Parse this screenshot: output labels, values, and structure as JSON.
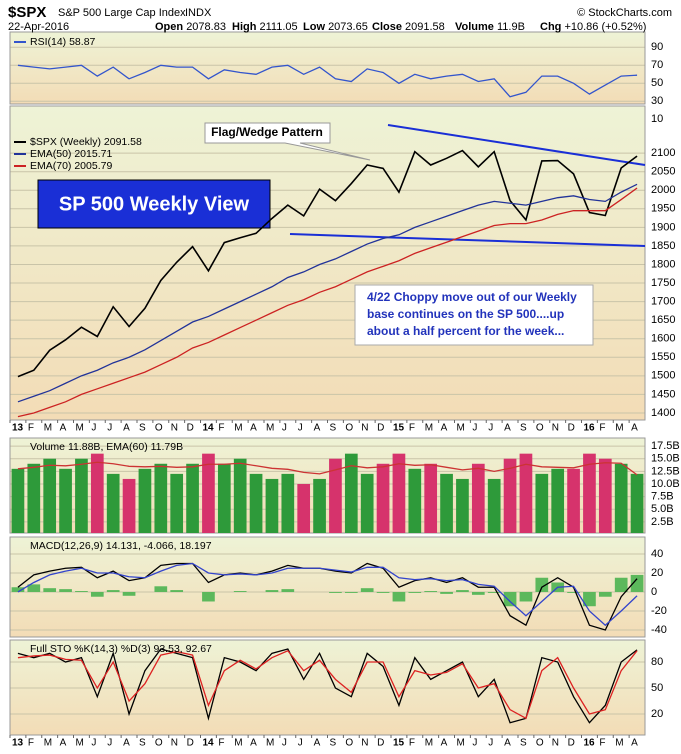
{
  "header": {
    "symbol": "$SPX",
    "name": "S&P 500 Large Cap Index",
    "exchange": "INDX",
    "copyright": "© StockCharts.com",
    "date": "22-Apr-2016",
    "quote": [
      {
        "label": "Open",
        "value": "2078.83"
      },
      {
        "label": "High",
        "value": "2111.05"
      },
      {
        "label": "Low",
        "value": "2073.65"
      },
      {
        "label": "Close",
        "value": "2091.58"
      },
      {
        "label": "Volume",
        "value": "11.9B"
      },
      {
        "label": "Chg",
        "value": "+10.86 (+0.52%)"
      }
    ]
  },
  "annotations": {
    "title_box": "SP 500 Weekly View",
    "callout": "Flag/Wedge Pattern",
    "comment": [
      "4/22  Choppy move out of our Weekly",
      "base continues on the SP 500....up",
      "about a half percent for the week..."
    ]
  },
  "chart_data": [
    {
      "type": "line",
      "ylim": [
        27,
        107
      ],
      "yticks": [
        10,
        30,
        50,
        70,
        90
      ],
      "grid": true,
      "series": [
        {
          "name": "RSI(14) 58.87",
          "color": "#3355cc",
          "values": [
            70,
            68,
            66,
            68,
            70,
            58,
            68,
            55,
            62,
            70,
            68,
            68,
            55,
            65,
            62,
            60,
            68,
            70,
            60,
            68,
            55,
            52,
            66,
            62,
            50,
            60,
            55,
            58,
            60,
            52,
            55,
            35,
            40,
            58,
            58,
            50,
            38,
            48,
            58,
            59
          ]
        }
      ]
    },
    {
      "type": "line",
      "ylim": [
        1381,
        2227
      ],
      "yticks": [
        1400,
        1450,
        1500,
        1550,
        1600,
        1650,
        1700,
        1750,
        1800,
        1850,
        1900,
        1950,
        2000,
        2050,
        2100
      ],
      "grid": true,
      "categories": [
        "13",
        "F",
        "M",
        "A",
        "M",
        "J",
        "J",
        "A",
        "S",
        "O",
        "N",
        "D",
        "14",
        "F",
        "M",
        "A",
        "M",
        "J",
        "J",
        "A",
        "S",
        "O",
        "N",
        "D",
        "15",
        "F",
        "M",
        "A",
        "M",
        "J",
        "J",
        "A",
        "S",
        "O",
        "N",
        "D",
        "16",
        "F",
        "M",
        "A"
      ],
      "series": [
        {
          "name": "$SPX (Weekly) 2091.58",
          "color": "#000000",
          "values": [
            1498,
            1515,
            1569,
            1597,
            1631,
            1606,
            1686,
            1633,
            1682,
            1757,
            1806,
            1848,
            1783,
            1859,
            1872,
            1884,
            1924,
            1960,
            1931,
            2003,
            1972,
            2018,
            2068,
            2059,
            1995,
            2104,
            2068,
            2086,
            2107,
            2063,
            2104,
            1972,
            1920,
            2079,
            2080,
            2044,
            1940,
            1932,
            2060,
            2092
          ]
        },
        {
          "name": "EMA(50) 2015.71",
          "color": "#223399",
          "values": [
            1430,
            1445,
            1460,
            1480,
            1500,
            1515,
            1535,
            1550,
            1570,
            1595,
            1620,
            1645,
            1660,
            1680,
            1700,
            1720,
            1740,
            1765,
            1780,
            1800,
            1815,
            1835,
            1855,
            1870,
            1880,
            1900,
            1915,
            1930,
            1945,
            1960,
            1970,
            1965,
            1960,
            1970,
            1980,
            1985,
            1975,
            1970,
            1995,
            2016
          ]
        },
        {
          "name": "EMA(70) 2005.79",
          "color": "#cc2222",
          "values": [
            1390,
            1400,
            1415,
            1430,
            1450,
            1465,
            1480,
            1495,
            1510,
            1530,
            1550,
            1575,
            1590,
            1610,
            1630,
            1650,
            1670,
            1690,
            1705,
            1725,
            1740,
            1760,
            1780,
            1795,
            1810,
            1830,
            1845,
            1860,
            1875,
            1890,
            1905,
            1910,
            1910,
            1920,
            1935,
            1945,
            1945,
            1945,
            1975,
            2006
          ]
        }
      ]
    },
    {
      "type": "combo",
      "legend": "Volume 11.88B, EMA(60) 11.79B",
      "ylim": [
        0.3,
        19.1
      ],
      "grid": true,
      "yticks": [
        {
          "value": 2.5,
          "label": "2.5B"
        },
        {
          "value": 5,
          "label": "5.0B"
        },
        {
          "value": 7.5,
          "label": "7.5B"
        },
        {
          "value": 10,
          "label": "10.0B"
        },
        {
          "value": 12.5,
          "label": "12.5B"
        },
        {
          "value": 15,
          "label": "15.0B"
        },
        {
          "value": 17.5,
          "label": "17.5B"
        }
      ],
      "series": [
        {
          "kind": "bar",
          "colors": [
            "#2e9a3a",
            "#2e9a3a",
            "#2e9a3a",
            "#2e9a3a",
            "#2e9a3a",
            "#d6336c",
            "#2e9a3a",
            "#d6336c",
            "#2e9a3a",
            "#2e9a3a",
            "#2e9a3a",
            "#2e9a3a",
            "#d6336c",
            "#2e9a3a",
            "#2e9a3a",
            "#2e9a3a",
            "#2e9a3a",
            "#2e9a3a",
            "#d6336c",
            "#2e9a3a",
            "#d6336c",
            "#2e9a3a",
            "#2e9a3a",
            "#d6336c",
            "#d6336c",
            "#2e9a3a",
            "#d6336c",
            "#2e9a3a",
            "#2e9a3a",
            "#d6336c",
            "#2e9a3a",
            "#d6336c",
            "#d6336c",
            "#2e9a3a",
            "#2e9a3a",
            "#d6336c",
            "#d6336c",
            "#d6336c",
            "#2e9a3a",
            "#2e9a3a"
          ],
          "values": [
            13,
            14,
            15,
            13,
            15,
            16,
            12,
            11,
            13,
            14,
            12,
            14,
            16,
            14,
            15,
            12,
            11,
            12,
            10,
            11,
            15,
            16,
            12,
            14,
            16,
            13,
            14,
            12,
            11,
            14,
            11,
            15,
            16,
            12,
            13,
            13,
            16,
            15,
            14,
            12
          ]
        },
        {
          "kind": "line",
          "color": "#cc3333",
          "values": [
            13,
            13.3,
            13.7,
            13.6,
            13.9,
            14.3,
            14,
            13.5,
            13.4,
            13.5,
            13.3,
            13.4,
            13.9,
            13.9,
            14.1,
            13.6,
            13.1,
            12.9,
            12.3,
            12,
            12.8,
            13.6,
            13.2,
            13.4,
            14,
            13.7,
            13.8,
            13.3,
            12.8,
            13.1,
            12.5,
            13.1,
            13.9,
            13.4,
            13.3,
            13.2,
            13.9,
            14.2,
            14.1,
            11.8
          ]
        }
      ]
    },
    {
      "type": "combo",
      "legend": "MACD(12,26,9) 14.131, -4.066, 18.197",
      "ylim": [
        -47.4,
        57.9
      ],
      "yticks": [
        -40,
        -20,
        0,
        20,
        40
      ],
      "grid": true,
      "series": [
        {
          "kind": "bar",
          "color": "#5cb85c",
          "values": [
            5,
            8,
            4,
            3,
            1,
            -5,
            2,
            -4,
            0,
            6,
            2,
            0,
            -10,
            0,
            1,
            0,
            2,
            3,
            0,
            0,
            -1,
            -1,
            4,
            -1,
            -10,
            -1,
            1,
            -2,
            2,
            -3,
            -1,
            -15,
            -10,
            15,
            10,
            -1,
            -15,
            -5,
            15,
            18
          ]
        },
        {
          "kind": "line",
          "color": "#000000",
          "values": [
            5,
            18,
            22,
            25,
            26,
            15,
            22,
            12,
            15,
            28,
            30,
            30,
            10,
            18,
            20,
            18,
            22,
            28,
            25,
            25,
            22,
            20,
            30,
            25,
            5,
            12,
            15,
            10,
            15,
            5,
            5,
            -25,
            -35,
            5,
            15,
            5,
            -35,
            -40,
            -5,
            14
          ]
        },
        {
          "kind": "line",
          "color": "#3344cc",
          "values": [
            0,
            10,
            18,
            22,
            25,
            20,
            20,
            16,
            15,
            22,
            28,
            30,
            20,
            18,
            19,
            18,
            20,
            25,
            25,
            25,
            23,
            21,
            26,
            26,
            15,
            13,
            14,
            12,
            13,
            8,
            6,
            -10,
            -25,
            -10,
            5,
            6,
            -20,
            -35,
            -20,
            -4
          ]
        }
      ]
    },
    {
      "type": "combo",
      "legend": "Full STO %K(14,3) %D(3) 93.53, 92.67",
      "ylim": [
        -4.2,
        105.4
      ],
      "yticks": [
        20,
        50,
        80
      ],
      "grid": true,
      "categories": [
        "13",
        "F",
        "M",
        "A",
        "M",
        "J",
        "J",
        "A",
        "S",
        "O",
        "N",
        "D",
        "14",
        "F",
        "M",
        "A",
        "M",
        "J",
        "J",
        "A",
        "S",
        "O",
        "N",
        "D",
        "15",
        "F",
        "M",
        "A",
        "M",
        "J",
        "J",
        "A",
        "S",
        "O",
        "N",
        "D",
        "16",
        "F",
        "M",
        "A"
      ],
      "series": [
        {
          "kind": "line",
          "color": "#000000",
          "values": [
            90,
            85,
            90,
            80,
            85,
            40,
            90,
            20,
            70,
            95,
            90,
            85,
            15,
            85,
            80,
            70,
            90,
            95,
            60,
            90,
            50,
            40,
            90,
            75,
            30,
            85,
            60,
            70,
            80,
            40,
            60,
            10,
            15,
            85,
            80,
            40,
            10,
            30,
            80,
            94
          ]
        },
        {
          "kind": "line",
          "color": "#dd2222",
          "values": [
            85,
            87,
            88,
            83,
            82,
            50,
            80,
            35,
            55,
            88,
            92,
            88,
            30,
            70,
            82,
            72,
            85,
            93,
            70,
            82,
            60,
            45,
            80,
            80,
            40,
            70,
            65,
            68,
            78,
            50,
            55,
            25,
            15,
            70,
            85,
            50,
            20,
            25,
            70,
            93
          ]
        }
      ]
    }
  ]
}
